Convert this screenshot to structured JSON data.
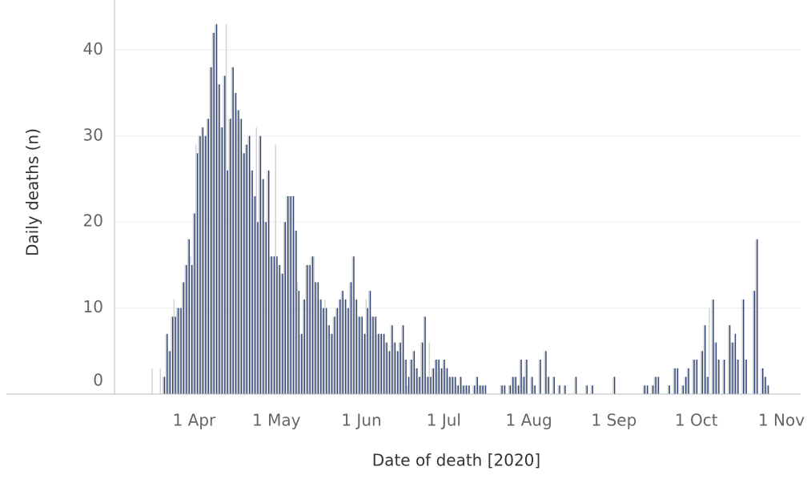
{
  "chart_data": {
    "type": "bar",
    "xlabel": "Date of death [2020]",
    "ylabel": "Daily deaths (n)",
    "x": [
      "2020-03-16",
      "2020-03-17",
      "2020-03-18",
      "2020-03-19",
      "2020-03-20",
      "2020-03-21",
      "2020-03-22",
      "2020-03-23",
      "2020-03-24",
      "2020-03-25",
      "2020-03-26",
      "2020-03-27",
      "2020-03-28",
      "2020-03-29",
      "2020-03-30",
      "2020-03-31",
      "2020-04-01",
      "2020-04-02",
      "2020-04-03",
      "2020-04-04",
      "2020-04-05",
      "2020-04-06",
      "2020-04-07",
      "2020-04-08",
      "2020-04-09",
      "2020-04-10",
      "2020-04-11",
      "2020-04-12",
      "2020-04-13",
      "2020-04-14",
      "2020-04-15",
      "2020-04-16",
      "2020-04-17",
      "2020-04-18",
      "2020-04-19",
      "2020-04-20",
      "2020-04-21",
      "2020-04-22",
      "2020-04-23",
      "2020-04-24",
      "2020-04-25",
      "2020-04-26",
      "2020-04-27",
      "2020-04-28",
      "2020-04-29",
      "2020-04-30",
      "2020-05-01",
      "2020-05-02",
      "2020-05-03",
      "2020-05-04",
      "2020-05-05",
      "2020-05-06",
      "2020-05-07",
      "2020-05-08",
      "2020-05-09",
      "2020-05-10",
      "2020-05-11",
      "2020-05-12",
      "2020-05-13",
      "2020-05-14",
      "2020-05-15",
      "2020-05-16",
      "2020-05-17",
      "2020-05-18",
      "2020-05-19",
      "2020-05-20",
      "2020-05-21",
      "2020-05-22",
      "2020-05-23",
      "2020-05-24",
      "2020-05-25",
      "2020-05-26",
      "2020-05-27",
      "2020-05-28",
      "2020-05-29",
      "2020-05-30",
      "2020-05-31",
      "2020-06-01",
      "2020-06-02",
      "2020-06-03",
      "2020-06-04",
      "2020-06-05",
      "2020-06-06",
      "2020-06-07",
      "2020-06-08",
      "2020-06-09",
      "2020-06-10",
      "2020-06-11",
      "2020-06-12",
      "2020-06-13",
      "2020-06-14",
      "2020-06-15",
      "2020-06-16",
      "2020-06-17",
      "2020-06-18",
      "2020-06-19",
      "2020-06-20",
      "2020-06-21",
      "2020-06-22",
      "2020-06-23",
      "2020-06-24",
      "2020-06-25",
      "2020-06-26",
      "2020-06-27",
      "2020-06-28",
      "2020-06-29",
      "2020-06-30",
      "2020-07-01",
      "2020-07-02",
      "2020-07-03",
      "2020-07-04",
      "2020-07-05",
      "2020-07-06",
      "2020-07-07",
      "2020-07-08",
      "2020-07-09",
      "2020-07-10",
      "2020-07-11",
      "2020-07-12",
      "2020-07-13",
      "2020-07-14",
      "2020-07-15",
      "2020-07-16",
      "2020-07-17",
      "2020-07-18",
      "2020-07-19",
      "2020-07-20",
      "2020-07-21",
      "2020-07-22",
      "2020-07-23",
      "2020-07-24",
      "2020-07-25",
      "2020-07-26",
      "2020-07-27",
      "2020-07-28",
      "2020-07-29",
      "2020-07-30",
      "2020-07-31",
      "2020-08-01",
      "2020-08-02",
      "2020-08-03",
      "2020-08-04",
      "2020-08-05",
      "2020-08-06",
      "2020-08-07",
      "2020-08-08",
      "2020-08-09",
      "2020-08-10",
      "2020-08-11",
      "2020-08-12",
      "2020-08-13",
      "2020-08-14",
      "2020-08-15",
      "2020-08-16",
      "2020-08-17",
      "2020-08-18",
      "2020-08-19",
      "2020-08-20",
      "2020-08-21",
      "2020-08-22",
      "2020-08-23",
      "2020-08-24",
      "2020-08-25",
      "2020-08-26",
      "2020-08-27",
      "2020-08-28",
      "2020-08-29",
      "2020-08-30",
      "2020-08-31",
      "2020-09-01",
      "2020-09-02",
      "2020-09-03",
      "2020-09-04",
      "2020-09-05",
      "2020-09-06",
      "2020-09-07",
      "2020-09-08",
      "2020-09-09",
      "2020-09-10",
      "2020-09-11",
      "2020-09-12",
      "2020-09-13",
      "2020-09-14",
      "2020-09-15",
      "2020-09-16",
      "2020-09-17",
      "2020-09-18",
      "2020-09-19",
      "2020-09-20",
      "2020-09-21",
      "2020-09-22",
      "2020-09-23",
      "2020-09-24",
      "2020-09-25",
      "2020-09-26",
      "2020-09-27",
      "2020-09-28",
      "2020-09-29",
      "2020-09-30",
      "2020-10-01",
      "2020-10-02",
      "2020-10-03",
      "2020-10-04",
      "2020-10-05",
      "2020-10-06",
      "2020-10-07",
      "2020-10-08",
      "2020-10-09",
      "2020-10-10",
      "2020-10-11",
      "2020-10-12",
      "2020-10-13",
      "2020-10-14",
      "2020-10-15",
      "2020-10-16",
      "2020-10-17",
      "2020-10-18",
      "2020-10-19",
      "2020-10-20",
      "2020-10-21",
      "2020-10-22",
      "2020-10-23",
      "2020-10-24",
      "2020-10-25",
      "2020-10-26",
      "2020-10-27",
      "2020-10-28",
      "2020-10-29",
      "2020-10-30",
      "2020-10-31"
    ],
    "series": [
      {
        "color": "#d3d3d3",
        "values": [
          0,
          3,
          0,
          0,
          3,
          2,
          7,
          5,
          9,
          11,
          10,
          10,
          13,
          15,
          18,
          16,
          21,
          29,
          30,
          31,
          30,
          32,
          38,
          42,
          43,
          36,
          31,
          37,
          43,
          32,
          38,
          35,
          33,
          32,
          28,
          29,
          30,
          26,
          23,
          31,
          30,
          25,
          20,
          26,
          16,
          16,
          29,
          15,
          14,
          20,
          23,
          23,
          23,
          19,
          13,
          7,
          11,
          15,
          15,
          16,
          16,
          13,
          11,
          10,
          11,
          8,
          7,
          9,
          10,
          11,
          12,
          11,
          10,
          13,
          16,
          11,
          9,
          9,
          7,
          11,
          12,
          9,
          9,
          7,
          7,
          7,
          6,
          5,
          8,
          6,
          5,
          6,
          8,
          4,
          1,
          4,
          5,
          3,
          2,
          6,
          9,
          2,
          6,
          3,
          4,
          4,
          3,
          4,
          3,
          2,
          2,
          2,
          1,
          2,
          1,
          1,
          1,
          0,
          1,
          2,
          1,
          1,
          1,
          0,
          0,
          0,
          0,
          0,
          1,
          1,
          0,
          1,
          2,
          2,
          1,
          4,
          2,
          4,
          0,
          2,
          1,
          0,
          4,
          0,
          5,
          2,
          0,
          2,
          0,
          1,
          0,
          1,
          0,
          0,
          0,
          2,
          0,
          0,
          0,
          1,
          0,
          1,
          0,
          0,
          0,
          0,
          0,
          0,
          0,
          2,
          0,
          0,
          0,
          0,
          0,
          0,
          0,
          0,
          0,
          0,
          1,
          1,
          0,
          1,
          2,
          2,
          0,
          0,
          0,
          1,
          0,
          3,
          3,
          0,
          1,
          2,
          3,
          0,
          4,
          4,
          0,
          5,
          8,
          2,
          10,
          11,
          6,
          4,
          0,
          4,
          0,
          8,
          6,
          6,
          4,
          0,
          11,
          4,
          0,
          0,
          12,
          18,
          0,
          3,
          2,
          1,
          0,
          0,
          0,
          0
        ]
      },
      {
        "color": "#2e4373",
        "values": [
          0,
          0,
          0,
          0,
          0,
          2,
          7,
          5,
          9,
          9,
          10,
          10,
          13,
          15,
          18,
          15,
          21,
          28,
          30,
          31,
          30,
          32,
          38,
          42,
          43,
          36,
          31,
          37,
          26,
          32,
          38,
          35,
          33,
          32,
          28,
          29,
          30,
          26,
          23,
          20,
          30,
          25,
          20,
          26,
          16,
          16,
          16,
          15,
          14,
          20,
          23,
          23,
          23,
          19,
          12,
          7,
          11,
          15,
          15,
          16,
          13,
          13,
          11,
          10,
          10,
          8,
          7,
          9,
          10,
          11,
          12,
          11,
          10,
          13,
          16,
          11,
          9,
          9,
          7,
          10,
          12,
          9,
          9,
          7,
          7,
          7,
          6,
          5,
          8,
          6,
          5,
          6,
          8,
          4,
          2,
          4,
          5,
          3,
          2,
          6,
          9,
          2,
          2,
          3,
          4,
          4,
          3,
          4,
          3,
          2,
          2,
          2,
          1,
          2,
          1,
          1,
          1,
          0,
          1,
          2,
          1,
          1,
          1,
          0,
          0,
          0,
          0,
          0,
          1,
          1,
          0,
          1,
          2,
          2,
          1,
          4,
          2,
          4,
          0,
          2,
          1,
          0,
          4,
          0,
          5,
          2,
          0,
          2,
          0,
          1,
          0,
          1,
          0,
          0,
          0,
          2,
          0,
          0,
          0,
          1,
          0,
          1,
          0,
          0,
          0,
          0,
          0,
          0,
          0,
          2,
          0,
          0,
          0,
          0,
          0,
          0,
          0,
          0,
          0,
          0,
          1,
          1,
          0,
          1,
          2,
          2,
          0,
          0,
          0,
          1,
          0,
          3,
          3,
          0,
          1,
          2,
          3,
          0,
          4,
          4,
          0,
          5,
          8,
          2,
          0,
          11,
          6,
          4,
          0,
          4,
          0,
          8,
          6,
          7,
          4,
          0,
          11,
          4,
          0,
          0,
          12,
          18,
          0,
          3,
          2,
          1,
          0,
          0,
          0,
          0
        ]
      }
    ],
    "xlim": [
      "2020-03-03",
      "2020-11-08"
    ],
    "xticks": [
      {
        "value": "2020-04-01",
        "label": "1 Apr"
      },
      {
        "value": "2020-05-01",
        "label": "1 May"
      },
      {
        "value": "2020-06-01",
        "label": "1 Jun"
      },
      {
        "value": "2020-07-01",
        "label": "1 Jul"
      },
      {
        "value": "2020-08-01",
        "label": "1 Aug"
      },
      {
        "value": "2020-09-01",
        "label": "1 Sep"
      },
      {
        "value": "2020-10-01",
        "label": "1 Oct"
      },
      {
        "value": "2020-11-01",
        "label": "1 Nov"
      }
    ],
    "ylim": [
      0,
      46
    ],
    "yticks": [
      0,
      10,
      20,
      30,
      40
    ],
    "grid": true
  }
}
